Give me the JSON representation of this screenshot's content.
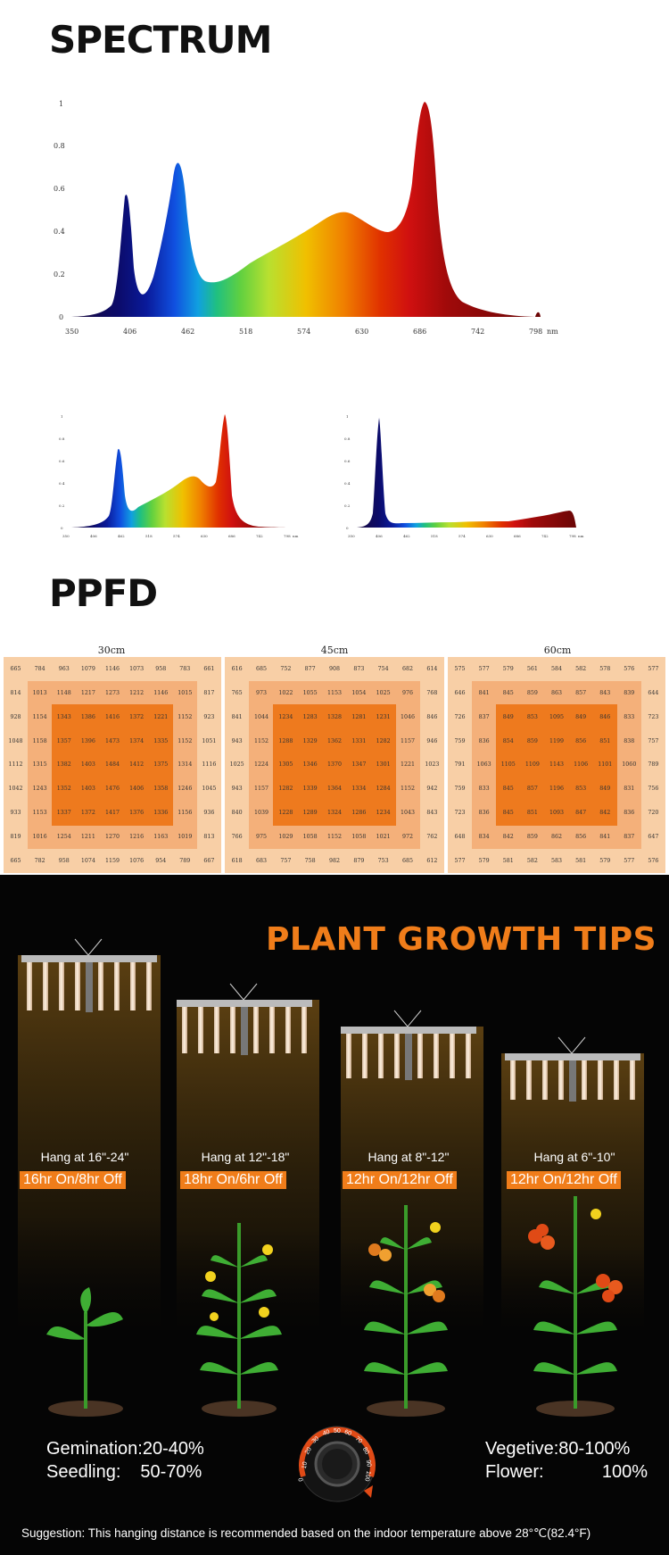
{
  "spectrum": {
    "heading": "SPECTRUM",
    "main_chart": {
      "y_ticks": [
        "0",
        "0.2",
        "0.4",
        "0.6",
        "0.8",
        "1"
      ],
      "x_ticks": [
        "350",
        "406",
        "462",
        "518",
        "574",
        "630",
        "686",
        "742",
        "798"
      ],
      "x_unit": "nm"
    },
    "small_left": {
      "y_ticks": [
        "0",
        "0.2",
        "0.4",
        "0.6",
        "0.8",
        "1"
      ],
      "x_ticks": [
        "350",
        "406",
        "462",
        "518",
        "574",
        "630",
        "686",
        "742",
        "798"
      ],
      "x_unit": "nm"
    },
    "small_right": {
      "y_ticks": [
        "0",
        "0.2",
        "0.4",
        "0.6",
        "0.8",
        "1"
      ],
      "x_ticks": [
        "350",
        "406",
        "462",
        "518",
        "574",
        "630",
        "686",
        "742",
        "798"
      ],
      "x_unit": "nm"
    }
  },
  "ppfd": {
    "heading": "PPFD",
    "panels": [
      {
        "title": "30cm",
        "rows": [
          [
            "665",
            "784",
            "963",
            "1079",
            "1146",
            "1073",
            "958",
            "783",
            "661"
          ],
          [
            "814",
            "1013",
            "1148",
            "1217",
            "1273",
            "1212",
            "1146",
            "1015",
            "817"
          ],
          [
            "928",
            "1154",
            "1343",
            "1386",
            "1416",
            "1372",
            "1221",
            "1152",
            "923"
          ],
          [
            "1048",
            "1158",
            "1357",
            "1396",
            "1473",
            "1374",
            "1335",
            "1152",
            "1051"
          ],
          [
            "1112",
            "1315",
            "1382",
            "1403",
            "1484",
            "1412",
            "1375",
            "1314",
            "1116"
          ],
          [
            "1042",
            "1243",
            "1352",
            "1403",
            "1476",
            "1406",
            "1358",
            "1246",
            "1045"
          ],
          [
            "933",
            "1153",
            "1337",
            "1372",
            "1417",
            "1376",
            "1336",
            "1156",
            "936"
          ],
          [
            "819",
            "1016",
            "1254",
            "1211",
            "1270",
            "1216",
            "1163",
            "1019",
            "813"
          ],
          [
            "665",
            "782",
            "958",
            "1074",
            "1159",
            "1076",
            "954",
            "789",
            "667"
          ]
        ]
      },
      {
        "title": "45cm",
        "rows": [
          [
            "616",
            "685",
            "752",
            "877",
            "908",
            "873",
            "754",
            "682",
            "614"
          ],
          [
            "765",
            "973",
            "1022",
            "1055",
            "1153",
            "1054",
            "1025",
            "976",
            "768"
          ],
          [
            "841",
            "1044",
            "1234",
            "1283",
            "1328",
            "1281",
            "1231",
            "1046",
            "846"
          ],
          [
            "943",
            "1152",
            "1288",
            "1329",
            "1362",
            "1331",
            "1282",
            "1157",
            "946"
          ],
          [
            "1025",
            "1224",
            "1305",
            "1346",
            "1370",
            "1347",
            "1301",
            "1221",
            "1023"
          ],
          [
            "943",
            "1157",
            "1282",
            "1339",
            "1364",
            "1334",
            "1284",
            "1152",
            "942"
          ],
          [
            "840",
            "1039",
            "1228",
            "1289",
            "1324",
            "1286",
            "1234",
            "1043",
            "843"
          ],
          [
            "766",
            "975",
            "1029",
            "1058",
            "1152",
            "1058",
            "1021",
            "972",
            "762"
          ],
          [
            "618",
            "683",
            "757",
            "758",
            "982",
            "879",
            "753",
            "685",
            "612"
          ]
        ]
      },
      {
        "title": "60cm",
        "rows": [
          [
            "575",
            "577",
            "579",
            "561",
            "584",
            "582",
            "578",
            "576",
            "577"
          ],
          [
            "646",
            "841",
            "845",
            "859",
            "863",
            "857",
            "843",
            "839",
            "644"
          ],
          [
            "726",
            "837",
            "849",
            "853",
            "1095",
            "849",
            "846",
            "833",
            "723"
          ],
          [
            "759",
            "836",
            "854",
            "859",
            "1199",
            "856",
            "851",
            "838",
            "757"
          ],
          [
            "791",
            "1063",
            "1105",
            "1109",
            "1143",
            "1106",
            "1101",
            "1060",
            "789"
          ],
          [
            "759",
            "833",
            "845",
            "857",
            "1196",
            "853",
            "849",
            "831",
            "756"
          ],
          [
            "723",
            "836",
            "845",
            "851",
            "1093",
            "847",
            "842",
            "836",
            "720"
          ],
          [
            "648",
            "834",
            "842",
            "859",
            "862",
            "856",
            "841",
            "837",
            "647"
          ],
          [
            "577",
            "579",
            "581",
            "582",
            "583",
            "581",
            "579",
            "577",
            "576"
          ]
        ]
      }
    ]
  },
  "tips": {
    "heading": "PLANT GROWTH TIPS",
    "stages": [
      {
        "hang": "Hang at 16\"-24\"",
        "cycle": "16hr On/8hr Off"
      },
      {
        "hang": "Hang at 12\"-18\"",
        "cycle": "18hr On/6hr Off"
      },
      {
        "hang": "Hang at 8\"-12\"",
        "cycle": "12hr On/12hr Off"
      },
      {
        "hang": "Hang at 6\"-10\"",
        "cycle": "12hr On/12hr Off"
      }
    ],
    "left_pct": {
      "line1": "Gemination:20-40%",
      "line2_label": "Seedling:",
      "line2_value": "50-70%"
    },
    "right_pct": {
      "line1": "Vegetive:80-100%",
      "line2_label": "Flower:",
      "line2_value": "100%"
    },
    "dial_numbers": [
      "0",
      "10",
      "20",
      "30",
      "40",
      "50",
      "60",
      "70",
      "80",
      "90",
      "100"
    ],
    "suggestion": "Suggestion: This hanging distance is recommended based on the indoor temperature above 28°℃(82.4°F)",
    "colors": {
      "accent": "#f07d1a",
      "background": "#050505"
    }
  }
}
